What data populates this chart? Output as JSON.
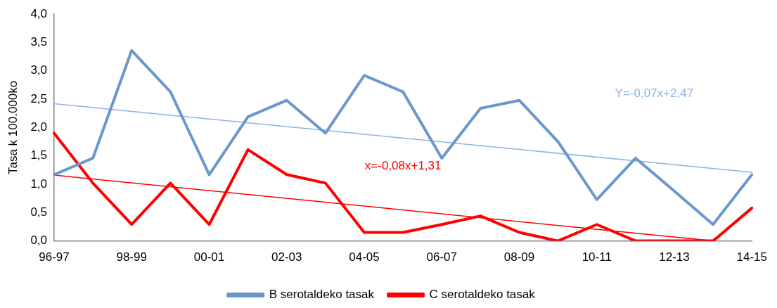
{
  "chart_data": {
    "type": "line",
    "ylabel": "Tasa k 100.000ko",
    "categories": [
      "96-97",
      null,
      "98-99",
      null,
      "00-01",
      null,
      "02-03",
      null,
      "04-05",
      null,
      "06-07",
      null,
      "08-09",
      null,
      "10-11",
      null,
      "12-13",
      null,
      "14-15"
    ],
    "series": [
      {
        "name": "B serotaldeko tasak",
        "color": "#6a98cc",
        "values": [
          1.17,
          1.46,
          3.36,
          2.63,
          1.17,
          2.19,
          2.48,
          1.9,
          2.92,
          2.63,
          1.46,
          2.34,
          2.48,
          1.75,
          0.73,
          1.46,
          0.88,
          0.29,
          1.17
        ]
      },
      {
        "name": "C serotaldeko tasak",
        "color": "#ff0000",
        "values": [
          1.9,
          1.02,
          0.29,
          1.02,
          0.29,
          1.61,
          1.17,
          1.02,
          0.15,
          0.15,
          0.29,
          0.44,
          0.15,
          0,
          0.29,
          0,
          0,
          0,
          0.58
        ]
      },
      {
        "color": "#8db3e2",
        "values": [
          2.42,
          null,
          null,
          null,
          null,
          null,
          null,
          null,
          null,
          null,
          null,
          null,
          null,
          null,
          null,
          null,
          null,
          null,
          1.21
        ]
      },
      {
        "color": "#ff0000",
        "values": [
          1.16,
          null,
          null,
          null,
          null,
          null,
          null,
          null,
          null,
          null,
          null,
          null,
          null,
          null,
          null,
          null,
          null,
          0,
          null
        ]
      }
    ],
    "annotations": [
      "Y=-0,07x+2,47",
      "x=-0,08x+1,31"
    ],
    "ylim": [
      0,
      4
    ],
    "yticks": [
      {
        "value": 0,
        "label": "0,0"
      },
      {
        "value": 0.5,
        "label": "0,5"
      },
      {
        "value": 1,
        "label": "1,0"
      },
      {
        "value": 1.5,
        "label": "1,5"
      },
      {
        "value": 2,
        "label": "2,0"
      },
      {
        "value": 2.5,
        "label": "2,5"
      },
      {
        "value": 3,
        "label": "3,0"
      },
      {
        "value": 3.5,
        "label": "3,5"
      },
      {
        "value": 4,
        "label": "4,0"
      }
    ],
    "grid": false,
    "legend": "bottom",
    "marker": "none",
    "line_style": "solid"
  }
}
